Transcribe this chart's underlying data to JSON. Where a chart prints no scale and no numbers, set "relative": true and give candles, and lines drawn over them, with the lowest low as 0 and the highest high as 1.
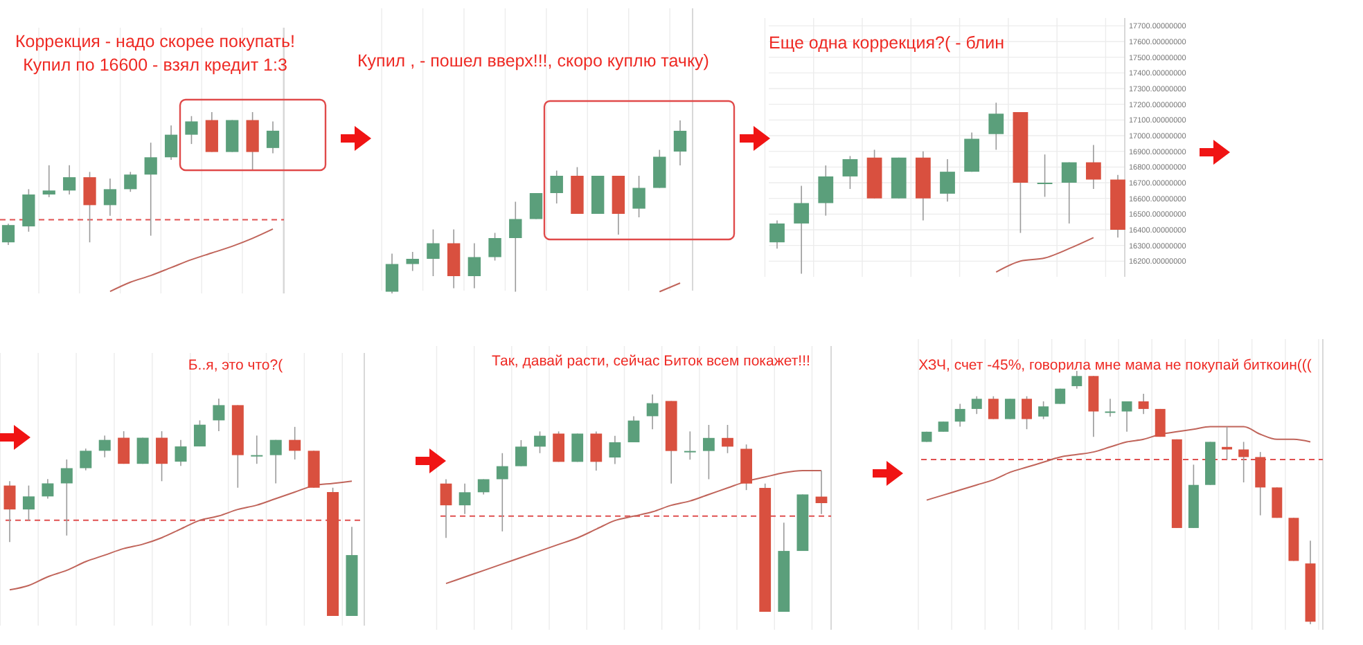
{
  "chart_data": [
    {
      "type": "candlestick",
      "title": "Коррекция - надо скорее покупать!",
      "subtitle": "Купил по 16600 - взял кредит 1:3",
      "relative": true,
      "grid": "x",
      "categories": [
        null,
        null,
        null,
        null,
        null,
        null,
        null,
        null,
        null,
        null,
        null,
        null,
        null,
        null
      ],
      "series": [
        {
          "type": "candlestick",
          "ohlc": [
            [
              0.02,
              0.16,
              0,
              0.15
            ],
            [
              0.14,
              0.42,
              0.1,
              0.38
            ],
            [
              0.38,
              0.6,
              0.36,
              0.41
            ],
            [
              0.41,
              0.6,
              0.38,
              0.51
            ],
            [
              0.51,
              0.55,
              0.02,
              0.3
            ],
            [
              0.3,
              0.5,
              0.22,
              0.42
            ],
            [
              0.42,
              0.55,
              0.4,
              0.53
            ],
            [
              0.53,
              0.77,
              0.07,
              0.66
            ],
            [
              0.66,
              0.9,
              0.64,
              0.83
            ],
            [
              0.83,
              0.97,
              0.76,
              0.93
            ],
            [
              0.94,
              1,
              0.7,
              0.7
            ],
            [
              0.7,
              0.94,
              0.7,
              0.94
            ],
            [
              0.94,
              1,
              0.56,
              0.7
            ],
            [
              0.73,
              0.93,
              0.69,
              0.86
            ]
          ],
          "colors": [
            "#5b9f7b",
            "#5b9f7b",
            "#5b9f7b",
            "#5b9f7b",
            "#d9503f",
            "#5b9f7b",
            "#5b9f7b",
            "#5b9f7b",
            "#5b9f7b",
            "#5b9f7b",
            "#d9503f",
            "#5b9f7b",
            "#d9503f",
            "#5b9f7b"
          ]
        },
        {
          "type": "line",
          "color": "#c0645a",
          "values": [
            null,
            null,
            null,
            null,
            null,
            -0.35,
            -0.28,
            -0.23,
            -0.17,
            -0.11,
            -0.06,
            -0.01,
            0.05,
            0.12
          ]
        }
      ],
      "ref_lines": [
        {
          "axis": "y",
          "value": 0.19,
          "color": "#e05050",
          "line_style": "dashed"
        }
      ]
    },
    {
      "type": "candlestick",
      "title": "Купил , - пошел вверх!!!, скоро куплю тачку)",
      "relative": true,
      "grid": "x",
      "categories": [
        null,
        null,
        null,
        null,
        null,
        null,
        null,
        null,
        null,
        null,
        null,
        null,
        null,
        null,
        null
      ],
      "series": [
        {
          "type": "candlestick",
          "ohlc": [
            [
              0.01,
              0.23,
              0,
              0.17
            ],
            [
              0.17,
              0.24,
              0.13,
              0.2
            ],
            [
              0.2,
              0.37,
              0.1,
              0.29
            ],
            [
              0.29,
              0.37,
              0.03,
              0.1
            ],
            [
              0.1,
              0.29,
              0.03,
              0.21
            ],
            [
              0.21,
              0.35,
              0.19,
              0.32
            ],
            [
              0.32,
              0.53,
              0.01,
              0.43
            ],
            [
              0.43,
              0.58,
              0.43,
              0.58
            ],
            [
              0.58,
              0.71,
              0.52,
              0.68
            ],
            [
              0.68,
              0.73,
              0.46,
              0.46
            ],
            [
              0.46,
              0.68,
              0.46,
              0.68
            ],
            [
              0.68,
              0.68,
              0.34,
              0.46
            ],
            [
              0.49,
              0.68,
              0.44,
              0.61
            ],
            [
              0.61,
              0.83,
              0.61,
              0.79
            ],
            [
              0.82,
              1,
              0.74,
              0.94
            ]
          ],
          "colors": [
            "#5b9f7b",
            "#5b9f7b",
            "#5b9f7b",
            "#d9503f",
            "#5b9f7b",
            "#5b9f7b",
            "#5b9f7b",
            "#5b9f7b",
            "#5b9f7b",
            "#d9503f",
            "#5b9f7b",
            "#d9503f",
            "#5b9f7b",
            "#5b9f7b",
            "#5b9f7b"
          ]
        },
        {
          "type": "line",
          "color": "#c0645a",
          "values": [
            null,
            null,
            null,
            null,
            null,
            null,
            null,
            null,
            null,
            null,
            null,
            null,
            null,
            0.01,
            0.06
          ]
        }
      ]
    },
    {
      "type": "candlestick",
      "title": "Еще одна коррекция?( - блин",
      "grid": true,
      "tick_labels": "y",
      "ylim": [
        16100,
        17750
      ],
      "yticks": [
        {
          "value": 16200,
          "label": "16200.00000000"
        },
        {
          "value": 16300,
          "label": "16300.00000000"
        },
        {
          "value": 16400,
          "label": "16400.00000000"
        },
        {
          "value": 16500,
          "label": "16500.00000000"
        },
        {
          "value": 16600,
          "label": "16600.00000000"
        },
        {
          "value": 16700,
          "label": "16700.00000000"
        },
        {
          "value": 16800,
          "label": "16800.00000000"
        },
        {
          "value": 16900,
          "label": "16900.00000000"
        },
        {
          "value": 17000,
          "label": "17000.00000000"
        },
        {
          "value": 17100,
          "label": "17100.00000000"
        },
        {
          "value": 17200,
          "label": "17200.00000000"
        },
        {
          "value": 17300,
          "label": "17300.00000000"
        },
        {
          "value": 17400,
          "label": "17400.00000000"
        },
        {
          "value": 17500,
          "label": "17500.00000000"
        },
        {
          "value": 17600,
          "label": "17600.00000000"
        },
        {
          "value": 17700,
          "label": "17700.00000000"
        }
      ],
      "categories": [
        null,
        null,
        null,
        null,
        null,
        null,
        null,
        null,
        null,
        null,
        null,
        null,
        null,
        null,
        null
      ],
      "series": [
        {
          "type": "candlestick",
          "ohlc": [
            [
              16320,
              16460,
              16280,
              16440
            ],
            [
              16440,
              16680,
              16120,
              16570
            ],
            [
              16570,
              16810,
              16490,
              16740
            ],
            [
              16740,
              16870,
              16660,
              16850
            ],
            [
              16860,
              16910,
              16600,
              16600
            ],
            [
              16600,
              16860,
              16600,
              16860
            ],
            [
              16860,
              16900,
              16460,
              16600
            ],
            [
              16630,
              16850,
              16580,
              16770
            ],
            [
              16770,
              17020,
              16770,
              16980
            ],
            [
              17010,
              17210,
              16910,
              17140
            ],
            [
              17150,
              17150,
              16380,
              16700
            ],
            [
              16700,
              16880,
              16610,
              16700
            ],
            [
              16700,
              16830,
              16440,
              16830
            ],
            [
              16830,
              16940,
              16660,
              16720
            ],
            [
              16720,
              16750,
              16350,
              16400
            ]
          ],
          "colors": [
            "#5b9f7b",
            "#5b9f7b",
            "#5b9f7b",
            "#5b9f7b",
            "#d9503f",
            "#5b9f7b",
            "#d9503f",
            "#5b9f7b",
            "#5b9f7b",
            "#5b9f7b",
            "#d9503f",
            "#5b9f7b",
            "#5b9f7b",
            "#d9503f",
            "#d9503f"
          ]
        },
        {
          "type": "line",
          "color": "#c0645a",
          "values": [
            null,
            null,
            null,
            null,
            null,
            null,
            null,
            null,
            null,
            16130,
            16200,
            16220,
            16280,
            16350,
            null
          ]
        }
      ]
    },
    {
      "type": "candlestick",
      "title": "Б..я, это что?(",
      "relative": true,
      "grid": "x",
      "categories": [
        null,
        null,
        null,
        null,
        null,
        null,
        null,
        null,
        null,
        null,
        null,
        null,
        null,
        null,
        null,
        null,
        null,
        null,
        null
      ],
      "series": [
        {
          "type": "candlestick",
          "ohlc": [
            [
              0.6,
              0.62,
              0.34,
              0.49
            ],
            [
              0.49,
              0.6,
              0.44,
              0.55
            ],
            [
              0.55,
              0.63,
              0.54,
              0.61
            ],
            [
              0.61,
              0.72,
              0.37,
              0.68
            ],
            [
              0.68,
              0.77,
              0.67,
              0.76
            ],
            [
              0.76,
              0.83,
              0.73,
              0.81
            ],
            [
              0.82,
              0.85,
              0.7,
              0.7
            ],
            [
              0.7,
              0.82,
              0.7,
              0.82
            ],
            [
              0.82,
              0.85,
              0.62,
              0.7
            ],
            [
              0.71,
              0.81,
              0.69,
              0.78
            ],
            [
              0.78,
              0.9,
              0.78,
              0.88
            ],
            [
              0.9,
              1,
              0.85,
              0.97
            ],
            [
              0.97,
              0.97,
              0.59,
              0.74
            ],
            [
              0.74,
              0.83,
              0.7,
              0.74
            ],
            [
              0.74,
              0.81,
              0.61,
              0.81
            ],
            [
              0.81,
              0.87,
              0.72,
              0.76
            ],
            [
              0.76,
              0.76,
              0.59,
              0.59
            ],
            [
              0.57,
              0.59,
              0,
              0
            ],
            [
              0,
              0.41,
              0,
              0.28
            ]
          ],
          "colors": [
            "#d9503f",
            "#5b9f7b",
            "#5b9f7b",
            "#5b9f7b",
            "#5b9f7b",
            "#5b9f7b",
            "#d9503f",
            "#5b9f7b",
            "#d9503f",
            "#5b9f7b",
            "#5b9f7b",
            "#5b9f7b",
            "#d9503f",
            "#5b9f7b",
            "#5b9f7b",
            "#d9503f",
            "#d9503f",
            "#d9503f",
            "#5b9f7b"
          ]
        },
        {
          "type": "line",
          "color": "#c0645a",
          "values": [
            0.12,
            0.14,
            0.18,
            0.21,
            0.25,
            0.28,
            0.31,
            0.33,
            0.36,
            0.4,
            0.44,
            0.46,
            0.49,
            0.51,
            0.54,
            0.57,
            0.6,
            0.61,
            0.62
          ]
        }
      ],
      "ref_lines": [
        {
          "axis": "y",
          "value": 0.44,
          "color": "#e05050",
          "line_style": "dashed"
        }
      ]
    },
    {
      "type": "candlestick",
      "title": "Так, давай расти, сейчас Биток всем покажет!!!",
      "relative": true,
      "grid": "x",
      "categories": [
        null,
        null,
        null,
        null,
        null,
        null,
        null,
        null,
        null,
        null,
        null,
        null,
        null,
        null,
        null,
        null,
        null,
        null,
        null,
        null,
        null
      ],
      "series": [
        {
          "type": "candlestick",
          "ohlc": [
            [
              0.59,
              0.61,
              0.34,
              0.49
            ],
            [
              0.49,
              0.59,
              0.45,
              0.55
            ],
            [
              0.55,
              0.61,
              0.54,
              0.61
            ],
            [
              0.61,
              0.73,
              0.37,
              0.67
            ],
            [
              0.67,
              0.79,
              0.67,
              0.76
            ],
            [
              0.76,
              0.83,
              0.73,
              0.81
            ],
            [
              0.82,
              0.83,
              0.69,
              0.69
            ],
            [
              0.69,
              0.82,
              0.69,
              0.82
            ],
            [
              0.82,
              0.83,
              0.65,
              0.69
            ],
            [
              0.71,
              0.81,
              0.68,
              0.78
            ],
            [
              0.78,
              0.9,
              0.78,
              0.88
            ],
            [
              0.9,
              1,
              0.84,
              0.96
            ],
            [
              0.97,
              0.97,
              0.59,
              0.74
            ],
            [
              0.74,
              0.83,
              0.7,
              0.74
            ],
            [
              0.74,
              0.86,
              0.61,
              0.8
            ],
            [
              0.8,
              0.86,
              0.73,
              0.76
            ],
            [
              0.75,
              0.77,
              0.56,
              0.59
            ],
            [
              0.57,
              0.59,
              0,
              0
            ],
            [
              0,
              0.41,
              0,
              0.28
            ],
            [
              0.28,
              0.54,
              0.28,
              0.54
            ],
            [
              0.53,
              0.65,
              0.45,
              0.5
            ]
          ],
          "colors": [
            "#d9503f",
            "#5b9f7b",
            "#5b9f7b",
            "#5b9f7b",
            "#5b9f7b",
            "#5b9f7b",
            "#d9503f",
            "#5b9f7b",
            "#d9503f",
            "#5b9f7b",
            "#5b9f7b",
            "#5b9f7b",
            "#d9503f",
            "#5b9f7b",
            "#5b9f7b",
            "#d9503f",
            "#d9503f",
            "#d9503f",
            "#5b9f7b",
            "#5b9f7b",
            "#d9503f"
          ]
        },
        {
          "type": "line",
          "color": "#c0645a",
          "values": [
            0.13,
            0.16,
            0.19,
            0.22,
            0.25,
            0.28,
            0.31,
            0.34,
            0.38,
            0.42,
            0.44,
            0.46,
            0.49,
            0.51,
            0.54,
            0.57,
            0.6,
            0.62,
            0.64,
            0.65,
            0.65
          ]
        }
      ],
      "ref_lines": [
        {
          "axis": "y",
          "value": 0.44,
          "color": "#e05050",
          "line_style": "dashed"
        }
      ]
    },
    {
      "type": "candlestick",
      "title": "ХЗЧ, счет -45%, говорила мне мама не покупай биткоин(((",
      "relative": true,
      "grid": "x",
      "categories": [
        null,
        null,
        null,
        null,
        null,
        null,
        null,
        null,
        null,
        null,
        null,
        null,
        null,
        null,
        null,
        null,
        null,
        null,
        null,
        null,
        null,
        null,
        null,
        null
      ],
      "series": [
        {
          "type": "candlestick",
          "ohlc": [
            [
              0.72,
              0.76,
              0.72,
              0.76
            ],
            [
              0.76,
              0.8,
              0.76,
              0.8
            ],
            [
              0.8,
              0.87,
              0.78,
              0.85
            ],
            [
              0.85,
              0.9,
              0.83,
              0.89
            ],
            [
              0.89,
              0.9,
              0.81,
              0.81
            ],
            [
              0.81,
              0.89,
              0.81,
              0.89
            ],
            [
              0.89,
              0.9,
              0.77,
              0.81
            ],
            [
              0.82,
              0.88,
              0.81,
              0.86
            ],
            [
              0.87,
              0.93,
              0.87,
              0.93
            ],
            [
              0.94,
              1,
              0.93,
              0.98
            ],
            [
              0.98,
              0.98,
              0.74,
              0.84
            ],
            [
              0.84,
              0.89,
              0.82,
              0.84
            ],
            [
              0.84,
              0.88,
              0.76,
              0.88
            ],
            [
              0.88,
              0.91,
              0.83,
              0.85
            ],
            [
              0.85,
              0.85,
              0.74,
              0.74
            ],
            [
              0.73,
              0.73,
              0.38,
              0.38
            ],
            [
              0.38,
              0.63,
              0.38,
              0.55
            ],
            [
              0.55,
              0.72,
              0.55,
              0.72
            ],
            [
              0.7,
              0.78,
              0.65,
              0.69
            ],
            [
              0.69,
              0.72,
              0.56,
              0.66
            ],
            [
              0.66,
              0.68,
              0.43,
              0.54
            ],
            [
              0.54,
              0.54,
              0.42,
              0.42
            ],
            [
              0.42,
              0.42,
              0.25,
              0.25
            ],
            [
              0.24,
              0.33,
              0,
              0.01
            ]
          ],
          "colors": [
            "#5b9f7b",
            "#5b9f7b",
            "#5b9f7b",
            "#5b9f7b",
            "#d9503f",
            "#5b9f7b",
            "#d9503f",
            "#5b9f7b",
            "#5b9f7b",
            "#5b9f7b",
            "#d9503f",
            "#5b9f7b",
            "#5b9f7b",
            "#d9503f",
            "#d9503f",
            "#d9503f",
            "#5b9f7b",
            "#5b9f7b",
            "#d9503f",
            "#d9503f",
            "#d9503f",
            "#d9503f",
            "#d9503f",
            "#d9503f"
          ]
        },
        {
          "type": "line",
          "color": "#c0645a",
          "values": [
            0.49,
            0.51,
            0.53,
            0.55,
            0.57,
            0.6,
            0.62,
            0.64,
            0.66,
            0.67,
            0.68,
            0.7,
            0.72,
            0.73,
            0.75,
            0.76,
            0.77,
            0.78,
            0.78,
            0.78,
            0.75,
            0.73,
            0.73,
            0.72
          ]
        }
      ],
      "ref_lines": [
        {
          "axis": "y",
          "value": 0.65,
          "color": "#e05050",
          "line_style": "dashed"
        }
      ]
    }
  ]
}
